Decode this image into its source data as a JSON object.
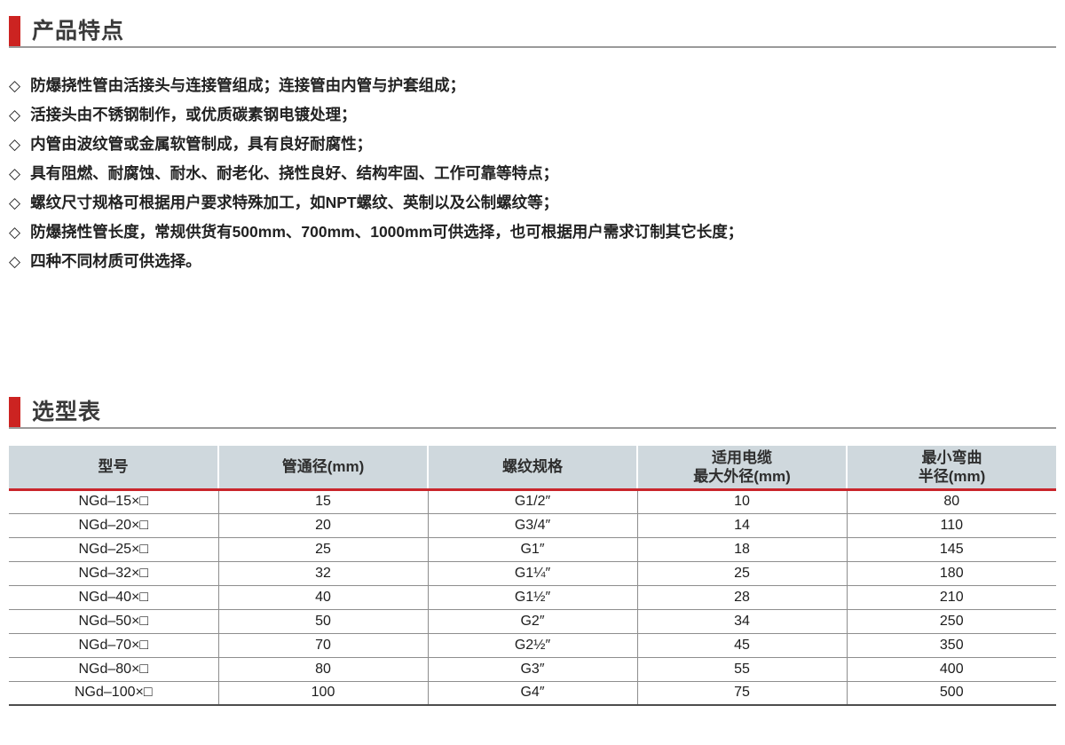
{
  "colors": {
    "accent_red": "#cc2321",
    "table_header_red_rule": "#c9252b",
    "table_header_bg": "#cfd8dd",
    "header_rule_gray": "#9a9a9a",
    "grid_gray": "#8e8e8e",
    "title_text": "#3a3a3a",
    "body_text": "#222222"
  },
  "features": {
    "title": "产品特点",
    "bullet_glyph": "◇",
    "bullets": [
      "防爆挠性管由活接头与连接管组成；连接管由内管与护套组成；",
      "活接头由不锈钢制作，或优质碳素钢电镀处理；",
      "内管由波纹管或金属软管制成，具有良好耐腐性；",
      "具有阻燃、耐腐蚀、耐水、耐老化、挠性良好、结构牢固、工作可靠等特点；",
      "螺纹尺寸规格可根据用户要求特殊加工，如NPT螺纹、英制以及公制螺纹等；",
      "防爆挠性管长度，常规供货有500mm、700mm、1000mm可供选择，也可根据用户需求订制其它长度；",
      "四种不同材质可供选择。"
    ]
  },
  "selection": {
    "title": "选型表",
    "table": {
      "headers": [
        {
          "lines": [
            "型号"
          ]
        },
        {
          "lines": [
            "管通径(mm)"
          ]
        },
        {
          "lines": [
            "螺纹规格"
          ]
        },
        {
          "lines": [
            "适用电缆",
            "最大外径(mm)"
          ]
        },
        {
          "lines": [
            "最小弯曲",
            "半径(mm)"
          ]
        }
      ],
      "rows": [
        {
          "model": "NGd–15×□",
          "diameter": "15",
          "thread": "G1/2″",
          "cable_od": "10",
          "bend_radius": "80"
        },
        {
          "model": "NGd–20×□",
          "diameter": "20",
          "thread": "G3/4″",
          "cable_od": "14",
          "bend_radius": "110"
        },
        {
          "model": "NGd–25×□",
          "diameter": "25",
          "thread": "G1″",
          "cable_od": "18",
          "bend_radius": "145"
        },
        {
          "model": "NGd–32×□",
          "diameter": "32",
          "thread": "G1¼″",
          "cable_od": "25",
          "bend_radius": "180"
        },
        {
          "model": "NGd–40×□",
          "diameter": "40",
          "thread": "G1½″",
          "cable_od": "28",
          "bend_radius": "210"
        },
        {
          "model": "NGd–50×□",
          "diameter": "50",
          "thread": "G2″",
          "cable_od": "34",
          "bend_radius": "250"
        },
        {
          "model": "NGd–70×□",
          "diameter": "70",
          "thread": "G2½″",
          "cable_od": "45",
          "bend_radius": "350"
        },
        {
          "model": "NGd–80×□",
          "diameter": "80",
          "thread": "G3″",
          "cable_od": "55",
          "bend_radius": "400"
        },
        {
          "model": "NGd–100×□",
          "diameter": "100",
          "thread": "G4″",
          "cable_od": "75",
          "bend_radius": "500"
        }
      ]
    }
  }
}
